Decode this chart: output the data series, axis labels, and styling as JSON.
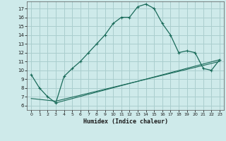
{
  "xlabel": "Humidex (Indice chaleur)",
  "background_color": "#ceeaea",
  "grid_color": "#aacece",
  "line_color": "#1a6b5a",
  "xlim": [
    -0.5,
    23.5
  ],
  "ylim": [
    5.5,
    17.8
  ],
  "xticks": [
    0,
    1,
    2,
    3,
    4,
    5,
    6,
    7,
    8,
    9,
    10,
    11,
    12,
    13,
    14,
    15,
    16,
    17,
    18,
    19,
    20,
    21,
    22,
    23
  ],
  "yticks": [
    6,
    7,
    8,
    9,
    10,
    11,
    12,
    13,
    14,
    15,
    16,
    17
  ],
  "curve1_x": [
    0,
    1,
    2,
    3,
    4,
    5,
    6,
    7,
    8,
    9,
    10,
    11,
    12,
    13,
    14,
    15,
    16,
    17,
    18,
    19,
    20,
    21,
    22,
    23
  ],
  "curve1_y": [
    9.5,
    8.0,
    7.0,
    6.3,
    9.3,
    10.2,
    11.0,
    12.0,
    13.0,
    14.0,
    15.3,
    16.0,
    16.0,
    17.2,
    17.5,
    17.0,
    15.3,
    14.0,
    12.0,
    12.2,
    12.0,
    10.2,
    10.0,
    11.2
  ],
  "curve2_x": [
    0,
    3,
    23
  ],
  "curve2_y": [
    6.8,
    6.5,
    11.0
  ],
  "curve3_x": [
    3,
    23
  ],
  "curve3_y": [
    6.3,
    11.2
  ]
}
